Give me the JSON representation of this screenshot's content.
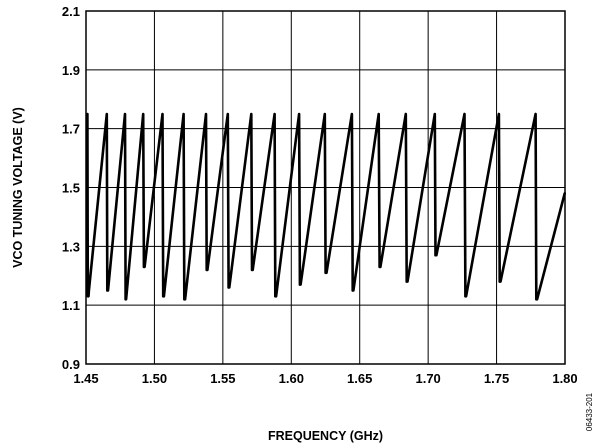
{
  "chart_data": {
    "type": "line",
    "title": "",
    "xlabel": "FREQUENCY (GHz)",
    "ylabel": "VCO TUNING VOLTAGE (V)",
    "xlim": [
      1.45,
      1.8
    ],
    "ylim": [
      0.9,
      2.1
    ],
    "xticks": [
      1.45,
      1.5,
      1.55,
      1.6,
      1.65,
      1.7,
      1.75,
      1.8
    ],
    "xtick_labels": [
      "1.45",
      "1.50",
      "1.55",
      "1.60",
      "1.65",
      "1.70",
      "1.75",
      "1.80"
    ],
    "yticks": [
      0.9,
      1.1,
      1.3,
      1.5,
      1.7,
      1.9,
      2.1
    ],
    "ytick_labels": [
      "0.9",
      "1.1",
      "1.3",
      "1.5",
      "1.7",
      "1.9",
      "2.1"
    ],
    "grid": true,
    "series": [
      {
        "x": [
          1.451,
          1.4513,
          1.4518,
          1.4521,
          1.4652,
          1.4656,
          1.4661,
          1.4785,
          1.4789,
          1.4793,
          1.4918,
          1.4923,
          1.4928,
          1.5059,
          1.5064,
          1.5069,
          1.5213,
          1.5218,
          1.5224,
          1.5377,
          1.5382,
          1.5387,
          1.5536,
          1.5542,
          1.5547,
          1.5708,
          1.5713,
          1.5718,
          1.5878,
          1.5883,
          1.5889,
          1.6057,
          1.6063,
          1.6068,
          1.6245,
          1.6251,
          1.6257,
          1.6443,
          1.6449,
          1.6454,
          1.6639,
          1.6645,
          1.6651,
          1.6837,
          1.6843,
          1.6849,
          1.7049,
          1.7054,
          1.706,
          1.7266,
          1.7272,
          1.7277,
          1.7517,
          1.7523,
          1.7529,
          1.7785,
          1.779,
          1.7796,
          1.7998
        ],
        "y": [
          1.75,
          1.13,
          1.13,
          1.15,
          1.75,
          1.15,
          1.15,
          1.75,
          1.12,
          1.12,
          1.75,
          1.23,
          1.23,
          1.75,
          1.13,
          1.13,
          1.75,
          1.12,
          1.12,
          1.75,
          1.22,
          1.22,
          1.75,
          1.16,
          1.16,
          1.75,
          1.22,
          1.22,
          1.75,
          1.13,
          1.13,
          1.75,
          1.17,
          1.17,
          1.75,
          1.21,
          1.21,
          1.75,
          1.15,
          1.15,
          1.75,
          1.23,
          1.23,
          1.75,
          1.18,
          1.18,
          1.75,
          1.27,
          1.27,
          1.75,
          1.13,
          1.13,
          1.75,
          1.18,
          1.18,
          1.75,
          1.12,
          1.12,
          1.48
        ]
      }
    ]
  },
  "figure_id": "06433-201"
}
